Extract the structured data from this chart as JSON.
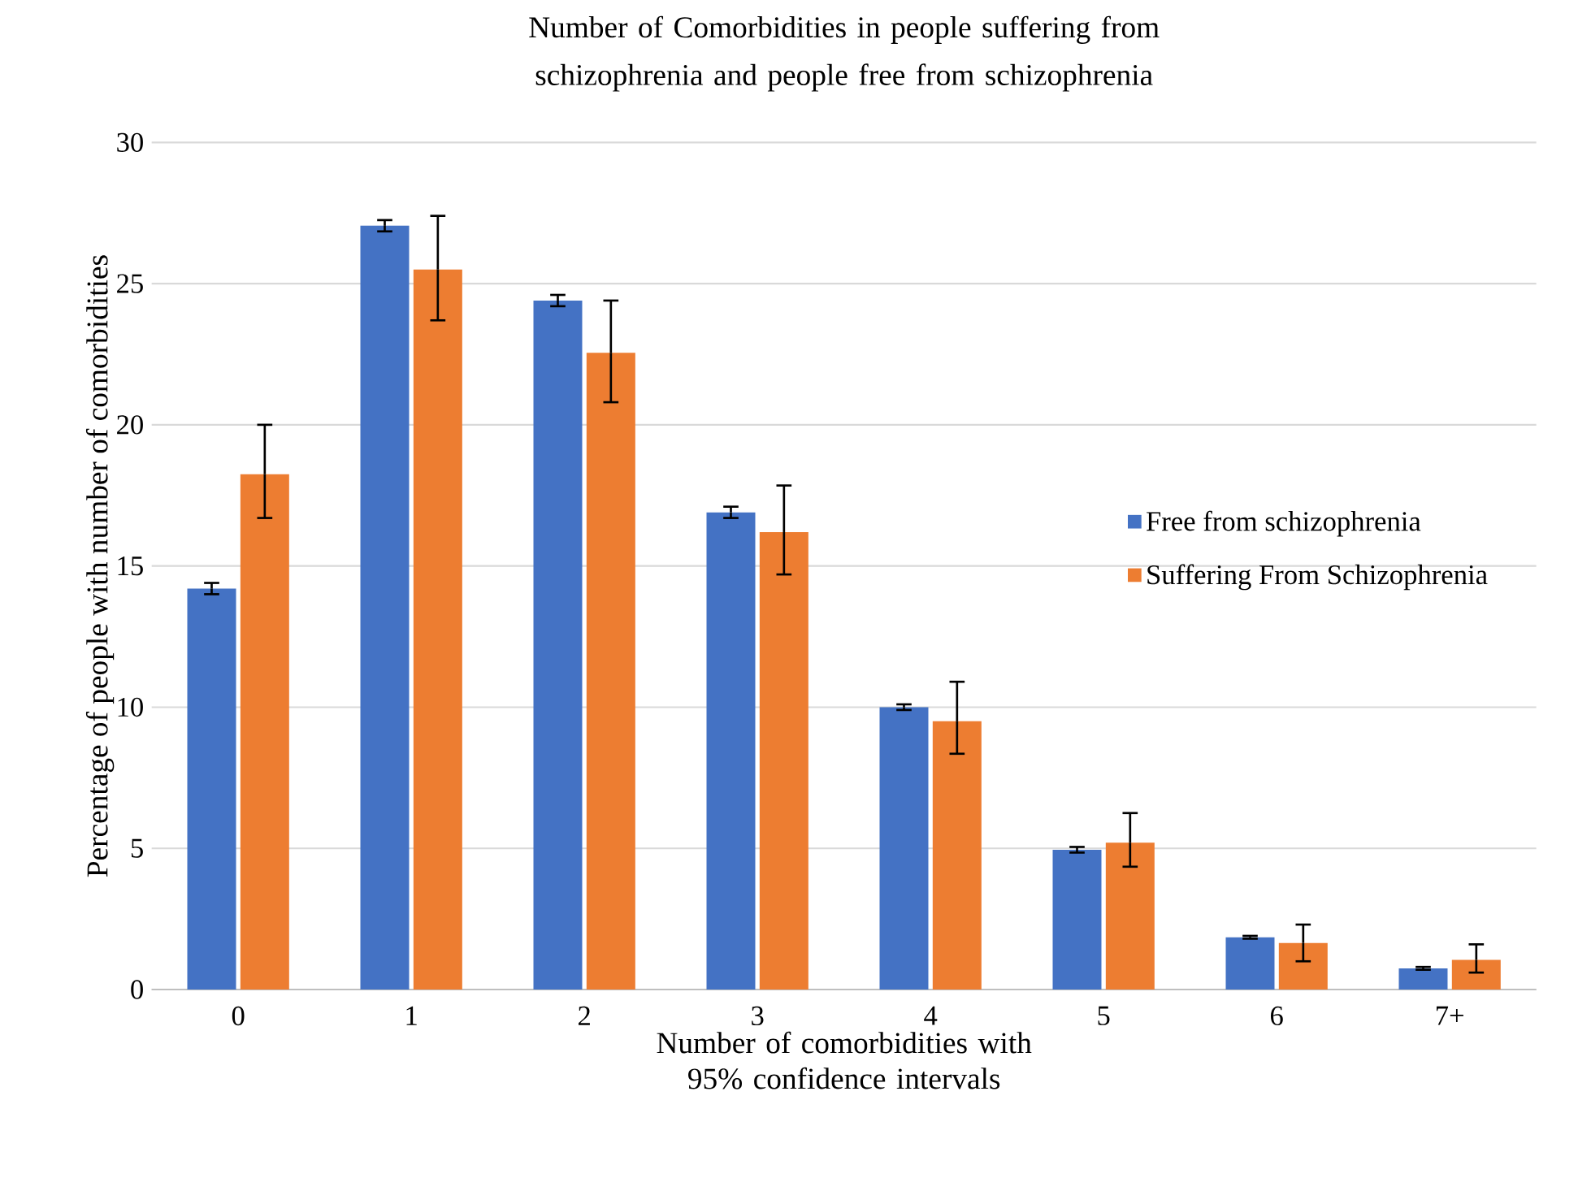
{
  "chart_data": {
    "type": "bar",
    "title": "Number of Comorbidities in people suffering from schizophrenia and people free from schizophrenia",
    "xlabel": "Number of comorbidities with 95% confidence intervals",
    "ylabel": "Percentage of people with number of comorbidities",
    "categories": [
      "0",
      "1",
      "2",
      "3",
      "4",
      "5",
      "6",
      "7+"
    ],
    "series": [
      {
        "name": "Free from schizophrenia",
        "color": "#4472c4",
        "values": [
          14.2,
          27.05,
          24.4,
          16.9,
          10.0,
          4.95,
          1.85,
          0.75
        ],
        "errors": [
          0.2,
          0.2,
          0.2,
          0.2,
          0.1,
          0.1,
          0.05,
          0.05
        ]
      },
      {
        "name": "Suffering From Schizophrenia",
        "color": "#ed7d31",
        "values": [
          18.25,
          25.5,
          22.55,
          16.2,
          9.5,
          5.2,
          1.65,
          1.05
        ],
        "errors": [
          [
            16.7,
            20.0
          ],
          [
            23.7,
            27.4
          ],
          [
            20.8,
            24.4
          ],
          [
            14.7,
            17.85
          ],
          [
            8.35,
            10.9
          ],
          [
            4.35,
            6.25
          ],
          [
            1.0,
            2.3
          ],
          [
            0.6,
            1.6
          ]
        ]
      }
    ],
    "ylim": [
      0,
      30
    ],
    "yticks": [
      0,
      5,
      10,
      15,
      20,
      25,
      30
    ],
    "grid": "y",
    "legend": "right"
  }
}
